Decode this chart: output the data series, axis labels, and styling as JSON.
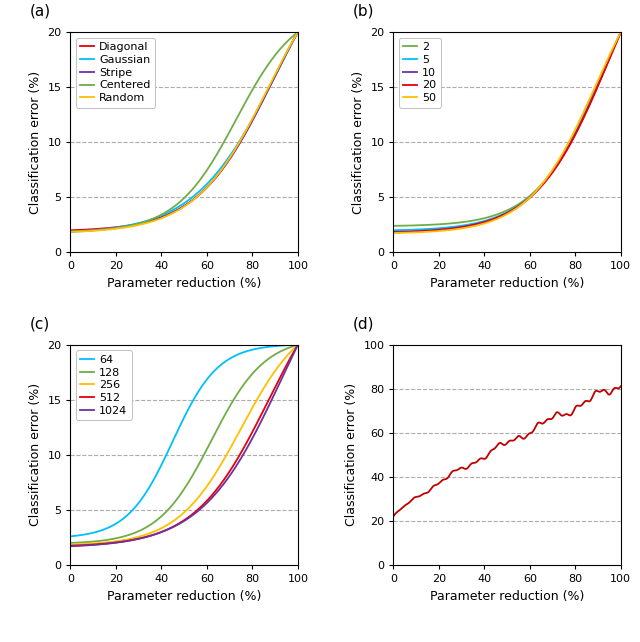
{
  "panel_a": {
    "title": "(a)",
    "xlabel": "Parameter reduction (%)",
    "ylabel": "Classification error (%)",
    "ylim": [
      0,
      20
    ],
    "xlim": [
      0,
      100
    ],
    "yticks": [
      0,
      5,
      10,
      15,
      20
    ],
    "xticks": [
      0,
      20,
      40,
      60,
      80,
      100
    ],
    "hlines": [
      5,
      10,
      15
    ],
    "curves": [
      {
        "label": "Diagonal",
        "color": "#e8000d",
        "base": 2.0,
        "steep": 0.062,
        "mid": 88
      },
      {
        "label": "Gaussian",
        "color": "#00bfff",
        "base": 1.85,
        "steep": 0.055,
        "mid": 91
      },
      {
        "label": "Stripe",
        "color": "#7030a0",
        "base": 1.9,
        "steep": 0.06,
        "mid": 89
      },
      {
        "label": "Centered",
        "color": "#70ad47",
        "base": 1.9,
        "steep": 0.075,
        "mid": 73
      },
      {
        "label": "Random",
        "color": "#ffc000",
        "base": 1.85,
        "steep": 0.062,
        "mid": 87
      }
    ]
  },
  "panel_b": {
    "title": "(b)",
    "xlabel": "Parameter reduction (%)",
    "ylabel": "Classification error (%)",
    "ylim": [
      0,
      20
    ],
    "xlim": [
      0,
      100
    ],
    "yticks": [
      0,
      5,
      10,
      15,
      20
    ],
    "xticks": [
      0,
      20,
      40,
      60,
      80,
      100
    ],
    "hlines": [
      5,
      10,
      15
    ],
    "curves": [
      {
        "label": "2",
        "color": "#70ad47",
        "base": 2.4,
        "steep": 0.07,
        "mid": 91
      },
      {
        "label": "5",
        "color": "#00bfff",
        "base": 2.0,
        "steep": 0.065,
        "mid": 93
      },
      {
        "label": "10",
        "color": "#7030a0",
        "base": 1.85,
        "steep": 0.063,
        "mid": 94
      },
      {
        "label": "20",
        "color": "#e8000d",
        "base": 1.8,
        "steep": 0.062,
        "mid": 95
      },
      {
        "label": "50",
        "color": "#ffc000",
        "base": 1.75,
        "steep": 0.068,
        "mid": 89
      }
    ]
  },
  "panel_c": {
    "title": "(c)",
    "xlabel": "Parameter reduction (%)",
    "ylabel": "Classification error (%)",
    "ylim": [
      0,
      20
    ],
    "xlim": [
      0,
      100
    ],
    "yticks": [
      0,
      5,
      10,
      15,
      20
    ],
    "xticks": [
      0,
      20,
      40,
      60,
      80,
      100
    ],
    "hlines": [
      5,
      10,
      15
    ],
    "curves": [
      {
        "label": "64",
        "color": "#00bfff",
        "base": 2.6,
        "steep": 0.1,
        "mid": 45
      },
      {
        "label": "128",
        "color": "#70ad47",
        "base": 2.0,
        "steep": 0.085,
        "mid": 62
      },
      {
        "label": "256",
        "color": "#ffc000",
        "base": 1.85,
        "steep": 0.072,
        "mid": 75
      },
      {
        "label": "512",
        "color": "#e8000d",
        "base": 1.75,
        "steep": 0.062,
        "mid": 87
      },
      {
        "label": "1024",
        "color": "#7030a0",
        "base": 1.7,
        "steep": 0.057,
        "mid": 93
      }
    ]
  },
  "panel_d": {
    "title": "(d)",
    "xlabel": "Parameter reduction (%)",
    "ylabel": "Classification error (%)",
    "ylim": [
      0,
      100
    ],
    "xlim": [
      0,
      100
    ],
    "yticks": [
      0,
      20,
      40,
      60,
      80,
      100
    ],
    "xticks": [
      0,
      20,
      40,
      60,
      80,
      100
    ],
    "hlines": [
      20,
      40,
      60,
      80
    ],
    "curve_color": "#c00000",
    "curve_start": 22.0,
    "curve_end": 82.0
  },
  "bg_color": "#ffffff",
  "grid_color": "#999999",
  "grid_style": "--",
  "grid_alpha": 0.8,
  "grid_lw": 0.8
}
